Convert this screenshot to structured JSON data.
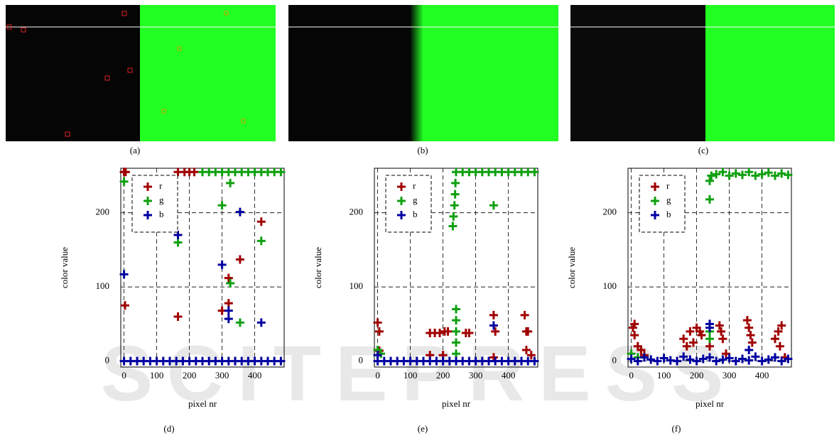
{
  "watermark": "SCITEPRESS",
  "panels": [
    "(a)",
    "(b)",
    "(c)"
  ],
  "chart_data": [
    {
      "type": "scatter",
      "caption": "(d)",
      "xlabel": "pixel nr",
      "ylabel": "color value",
      "xlim": [
        -10,
        490
      ],
      "ylim": [
        -8,
        260
      ],
      "xticks": [
        0,
        100,
        200,
        300,
        400
      ],
      "yticks": [
        0,
        100,
        200
      ],
      "grid": true,
      "legend": "top-left",
      "series": [
        {
          "name": "r",
          "color": "#a00000",
          "x": [
            0,
            3,
            5,
            165,
            165,
            185,
            200,
            215,
            300,
            320,
            320,
            355,
            420
          ],
          "values": [
            255,
            75,
            255,
            60,
            255,
            255,
            255,
            255,
            68,
            78,
            112,
            137,
            188
          ]
        },
        {
          "name": "g",
          "color": "#10a010",
          "x": [
            0,
            165,
            240,
            260,
            280,
            300,
            320,
            340,
            360,
            380,
            400,
            420,
            440,
            460,
            480,
            300,
            325,
            325,
            355,
            420
          ],
          "values": [
            242,
            160,
            255,
            255,
            255,
            255,
            255,
            255,
            255,
            255,
            255,
            255,
            255,
            255,
            255,
            210,
            240,
            105,
            52,
            162
          ]
        },
        {
          "name": "b",
          "color": "#0000a0",
          "x": [
            0,
            165,
            300,
            320,
            320,
            355,
            420,
            0,
            20,
            40,
            60,
            80,
            100,
            120,
            140,
            160,
            180,
            200,
            220,
            240,
            260,
            280,
            300,
            320,
            340,
            360,
            380,
            400,
            420,
            440,
            460,
            480
          ],
          "values": [
            117,
            170,
            130,
            68,
            57,
            201,
            52,
            0,
            0,
            0,
            0,
            0,
            0,
            0,
            0,
            0,
            0,
            0,
            0,
            0,
            0,
            0,
            0,
            0,
            0,
            0,
            0,
            0,
            0,
            0,
            0,
            0
          ]
        }
      ]
    },
    {
      "type": "scatter",
      "caption": "(e)",
      "xlabel": "pixel nr",
      "ylabel": "color value",
      "xlim": [
        -10,
        490
      ],
      "ylim": [
        -8,
        260
      ],
      "xticks": [
        0,
        100,
        200,
        300,
        400
      ],
      "yticks": [
        0,
        100,
        200
      ],
      "grid": true,
      "legend": "top-left",
      "series": [
        {
          "name": "r",
          "color": "#a00000",
          "x": [
            0,
            5,
            5,
            160,
            175,
            190,
            205,
            215,
            160,
            200,
            270,
            280,
            355,
            360,
            355,
            450,
            455,
            460,
            455,
            470
          ],
          "values": [
            52,
            40,
            14,
            38,
            38,
            38,
            40,
            40,
            8,
            8,
            38,
            38,
            62,
            40,
            5,
            62,
            40,
            40,
            15,
            8
          ]
        },
        {
          "name": "g",
          "color": "#10a010",
          "x": [
            230,
            232,
            235,
            237,
            238,
            240,
            260,
            280,
            300,
            320,
            340,
            360,
            380,
            400,
            420,
            440,
            460,
            480,
            355,
            240,
            240,
            240,
            240,
            240,
            0,
            10
          ],
          "values": [
            182,
            195,
            210,
            225,
            240,
            255,
            255,
            255,
            255,
            255,
            255,
            255,
            255,
            255,
            255,
            255,
            255,
            255,
            210,
            70,
            55,
            40,
            25,
            10,
            15,
            10
          ]
        },
        {
          "name": "b",
          "color": "#0000a0",
          "x": [
            0,
            355,
            0,
            20,
            40,
            60,
            80,
            100,
            120,
            140,
            160,
            180,
            200,
            220,
            240,
            260,
            280,
            300,
            320,
            340,
            360,
            380,
            400,
            420,
            440,
            460,
            480
          ],
          "values": [
            8,
            48,
            0,
            0,
            0,
            0,
            0,
            0,
            0,
            0,
            0,
            0,
            0,
            0,
            0,
            0,
            0,
            0,
            0,
            0,
            0,
            0,
            0,
            0,
            0,
            0,
            0
          ]
        }
      ]
    },
    {
      "type": "scatter",
      "caption": "(f)",
      "xlabel": "pixel nr",
      "ylabel": "color value",
      "xlim": [
        -10,
        490
      ],
      "ylim": [
        -8,
        260
      ],
      "xticks": [
        0,
        100,
        200,
        300,
        400
      ],
      "yticks": [
        0,
        100,
        200
      ],
      "grid": true,
      "legend": "top-left",
      "series": [
        {
          "name": "r",
          "color": "#a00000",
          "x": [
            5,
            10,
            10,
            20,
            30,
            40,
            160,
            170,
            180,
            190,
            200,
            210,
            215,
            240,
            270,
            275,
            280,
            290,
            355,
            360,
            365,
            370,
            440,
            450,
            460,
            455,
            470
          ],
          "values": [
            45,
            50,
            35,
            20,
            15,
            8,
            30,
            20,
            40,
            25,
            45,
            40,
            35,
            20,
            48,
            40,
            30,
            10,
            55,
            45,
            35,
            25,
            30,
            40,
            48,
            20,
            5
          ]
        },
        {
          "name": "g",
          "color": "#10a010",
          "x": [
            240,
            240,
            245,
            260,
            280,
            300,
            320,
            340,
            360,
            380,
            400,
            420,
            440,
            460,
            480,
            240,
            240,
            0,
            20
          ],
          "values": [
            218,
            243,
            250,
            252,
            255,
            250,
            253,
            251,
            255,
            250,
            252,
            254,
            250,
            253,
            251,
            40,
            30,
            10,
            5
          ]
        },
        {
          "name": "b",
          "color": "#0000a0",
          "x": [
            240,
            240,
            360,
            0,
            20,
            40,
            60,
            80,
            100,
            120,
            140,
            160,
            180,
            200,
            220,
            240,
            260,
            280,
            300,
            320,
            340,
            360,
            380,
            400,
            420,
            440,
            460,
            480
          ],
          "values": [
            50,
            45,
            15,
            3,
            0,
            5,
            2,
            0,
            4,
            1,
            0,
            6,
            2,
            0,
            3,
            5,
            0,
            2,
            4,
            0,
            3,
            1,
            6,
            0,
            2,
            5,
            0,
            3
          ]
        }
      ]
    }
  ]
}
